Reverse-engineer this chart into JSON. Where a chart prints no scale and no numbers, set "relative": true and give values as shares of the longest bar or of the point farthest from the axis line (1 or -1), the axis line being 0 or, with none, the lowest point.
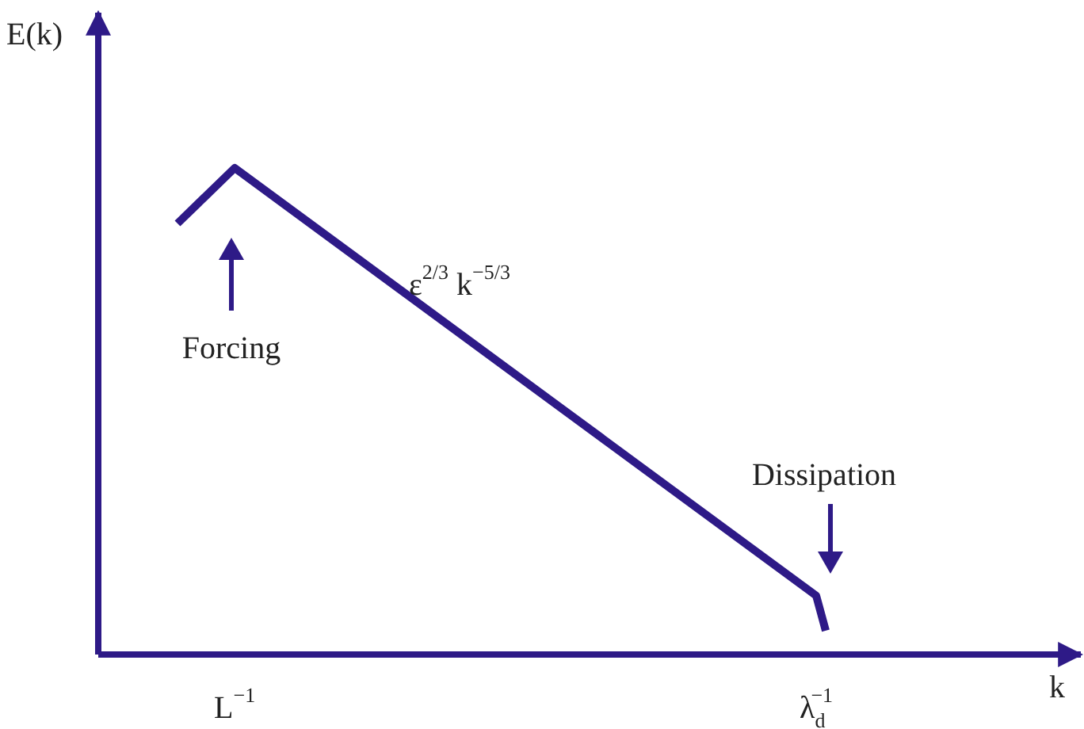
{
  "chart_data": {
    "type": "line",
    "relative": true,
    "categories": [
      null,
      null,
      null,
      null,
      null,
      null,
      "L$^{−1}$",
      null,
      null,
      null,
      null,
      null,
      null,
      null,
      null,
      null,
      null,
      null,
      null,
      null,
      null,
      null,
      null,
      null,
      null,
      null,
      null,
      null,
      null,
      null,
      null,
      null,
      null,
      null,
      null,
      null,
      null,
      null,
      null,
      null,
      null,
      null,
      null,
      null,
      null,
      null,
      null,
      null,
      null,
      null,
      null,
      null,
      null,
      null,
      null,
      null,
      null,
      null,
      null,
      null,
      null,
      null,
      null,
      null,
      null,
      null,
      null,
      "λ$_{d}$$^{−1}$",
      null
    ],
    "series": [
      {
        "color": "#2e1a87",
        "values": [
          0.886,
          null,
          null,
          null,
          null,
          null,
          1,
          null,
          null,
          null,
          null,
          null,
          null,
          null,
          null,
          null,
          null,
          null,
          null,
          null,
          null,
          null,
          null,
          null,
          null,
          null,
          null,
          null,
          null,
          null,
          null,
          null,
          null,
          null,
          null,
          null,
          null,
          null,
          null,
          null,
          null,
          null,
          null,
          null,
          null,
          null,
          null,
          null,
          null,
          null,
          null,
          null,
          null,
          null,
          null,
          null,
          null,
          null,
          null,
          null,
          null,
          null,
          null,
          null,
          null,
          null,
          null,
          0.121,
          0.049
        ]
      }
    ],
    "annotations": [
      "ε$^{2/3}$ k$^{−5/3}$",
      "Forcing",
      "Dissipation",
      "E(k)",
      "k"
    ],
    "marker": "none",
    "line_style": "solid"
  }
}
